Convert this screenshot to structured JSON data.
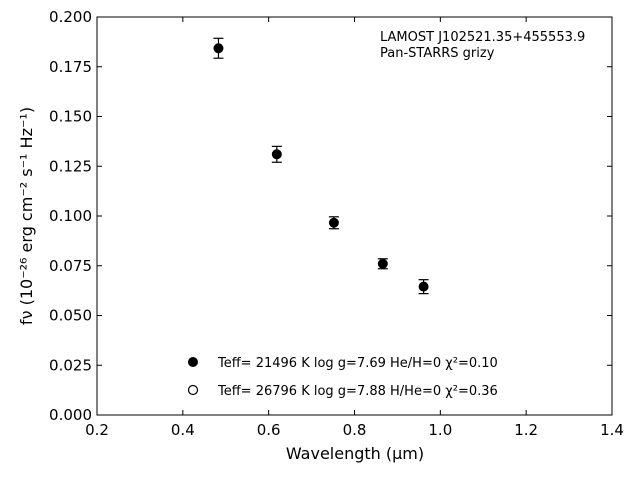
{
  "chart_data": {
    "type": "scatter",
    "annotation": [
      "LAMOST J102521.35+455553.9",
      "Pan-STARRS grizy"
    ],
    "xlabel": "Wavelength (μm)",
    "ylabel": "fν (10⁻²⁶ erg cm⁻² s⁻¹ Hz⁻¹)",
    "xlim": [
      0.2,
      1.4
    ],
    "ylim": [
      0.0,
      0.2
    ],
    "xticks": [
      "0.2",
      "0.4",
      "0.6",
      "0.8",
      "1.0",
      "1.2",
      "1.4"
    ],
    "yticks": [
      "0.000",
      "0.025",
      "0.050",
      "0.075",
      "0.100",
      "0.125",
      "0.150",
      "0.175",
      "0.200"
    ],
    "grid": false,
    "legend_placement": "lower-center",
    "series": [
      {
        "name": "Teff= 21496 K  log g=7.69  He/H=0  χ²=0.10",
        "marker": "filled-circle",
        "color": "#000000",
        "points": [
          {
            "x": 0.483,
            "y": 0.1843,
            "err": 0.005
          },
          {
            "x": 0.619,
            "y": 0.131,
            "err": 0.004
          },
          {
            "x": 0.752,
            "y": 0.0966,
            "err": 0.003
          },
          {
            "x": 0.866,
            "y": 0.076,
            "err": 0.0025
          },
          {
            "x": 0.961,
            "y": 0.0645,
            "err": 0.0035
          }
        ]
      },
      {
        "name": "Teff= 26796 K  log g=7.88  H/He=0  χ²=0.36",
        "marker": "open-circle",
        "color": "#000000",
        "points": []
      }
    ]
  }
}
